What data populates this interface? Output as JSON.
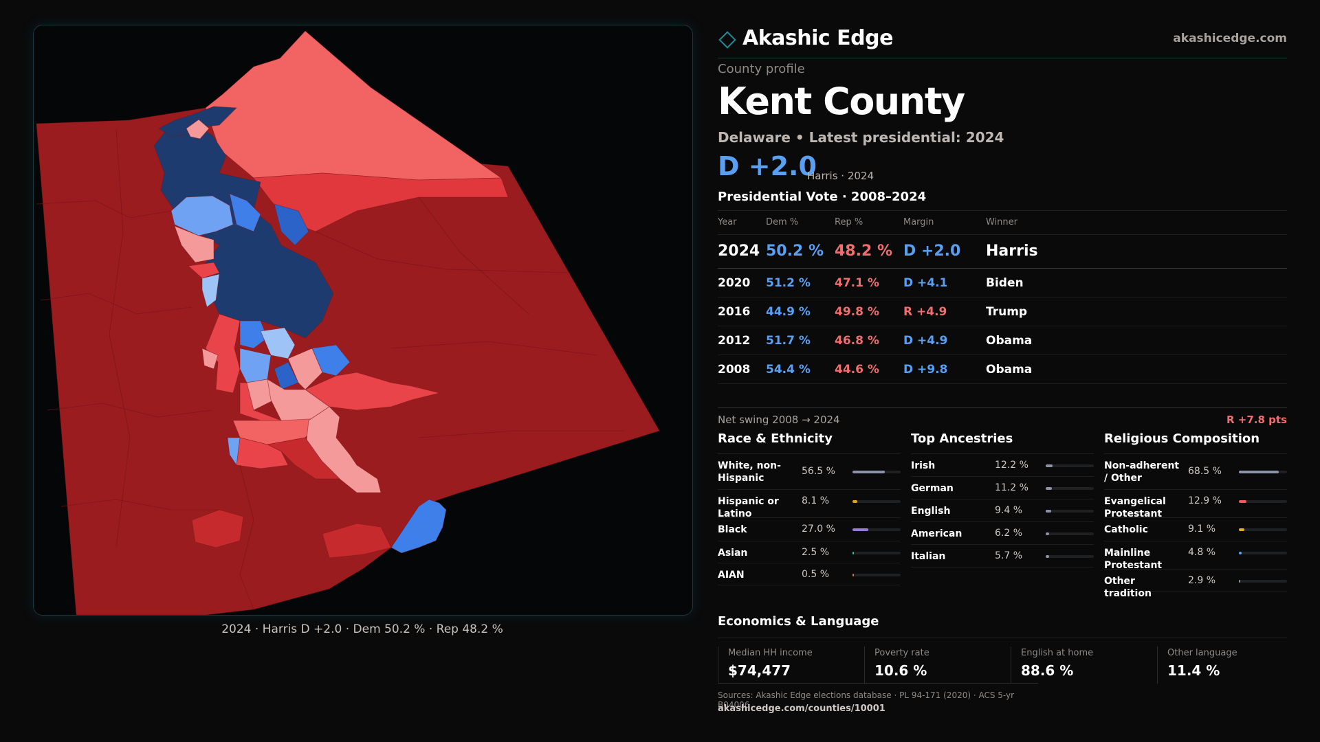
{
  "brand": {
    "name": "Akashic Edge",
    "url": "akashicedge.com",
    "accent": "#1e8c93"
  },
  "header": {
    "eyebrow": "County profile",
    "title": "Kent County",
    "subtitle": "Delaware • Latest presidential: 2024",
    "margin": "D +2.0",
    "margin_note": "Harris · 2024"
  },
  "map": {
    "caption": "2024 · Harris D +2.0 · Dem 50.2 % · Rep 48.2 %",
    "palette": {
      "safe_rep": "#9b1c1f",
      "likely_rep": "#c62a2d",
      "lean_rep": "#e8444a",
      "tilt_rep": "#f26363",
      "light_rep": "#f59a9a",
      "safe_dem": "#1d3b6e",
      "likely_dem": "#2c63c9",
      "lean_dem": "#3e7fea",
      "tilt_dem": "#6fa2f2",
      "light_dem": "#9dc3f7"
    }
  },
  "vote_table": {
    "title": "Presidential Vote · 2008–2024",
    "columns": [
      "Year",
      "Dem %",
      "Rep %",
      "Margin",
      "Winner"
    ],
    "rows": [
      {
        "year": "2024",
        "dem": "50.2 %",
        "rep": "48.2 %",
        "margin": "D +2.0",
        "party": "dem",
        "winner": "Harris"
      },
      {
        "year": "2020",
        "dem": "51.2 %",
        "rep": "47.1 %",
        "margin": "D +4.1",
        "party": "dem",
        "winner": "Biden"
      },
      {
        "year": "2016",
        "dem": "44.9 %",
        "rep": "49.8 %",
        "margin": "R +4.9",
        "party": "rep",
        "winner": "Trump"
      },
      {
        "year": "2012",
        "dem": "51.7 %",
        "rep": "46.8 %",
        "margin": "D +4.9",
        "party": "dem",
        "winner": "Obama"
      },
      {
        "year": "2008",
        "dem": "54.4 %",
        "rep": "44.6 %",
        "margin": "D +9.8",
        "party": "dem",
        "winner": "Obama"
      }
    ],
    "swing_label": "Net swing 2008 → 2024",
    "swing_value": "R +7.8 pts"
  },
  "race": {
    "title": "Race & Ethnicity",
    "items": [
      {
        "label": "White, non-Hispanic",
        "pct": "56.5 %",
        "value": 56.5,
        "color": "#8a93a8"
      },
      {
        "label": "Hispanic or Latino",
        "pct": "8.1 %",
        "value": 8.1,
        "color": "#e0a020"
      },
      {
        "label": "Black",
        "pct": "27.0 %",
        "value": 27.0,
        "color": "#9a7ae0"
      },
      {
        "label": "Asian",
        "pct": "2.5 %",
        "value": 2.5,
        "color": "#2ec2a8"
      },
      {
        "label": "AIAN",
        "pct": "0.5 %",
        "value": 0.5,
        "color": "#d07a4a"
      }
    ]
  },
  "ancestry": {
    "title": "Top Ancestries",
    "items": [
      {
        "label": "Irish",
        "pct": "12.2 %",
        "value": 12.2,
        "color": "#8a93a8"
      },
      {
        "label": "German",
        "pct": "11.2 %",
        "value": 11.2,
        "color": "#8a93a8"
      },
      {
        "label": "English",
        "pct": "9.4 %",
        "value": 9.4,
        "color": "#8a93a8"
      },
      {
        "label": "American",
        "pct": "6.2 %",
        "value": 6.2,
        "color": "#8a93a8"
      },
      {
        "label": "Italian",
        "pct": "5.7 %",
        "value": 5.7,
        "color": "#8a93a8"
      }
    ]
  },
  "religion": {
    "title": "Religious Composition",
    "items": [
      {
        "label": "Non-adherent / Other",
        "pct": "68.5 %",
        "value": 68.5,
        "color": "#8a93a8"
      },
      {
        "label": "Evangelical Protestant",
        "pct": "12.9 %",
        "value": 12.9,
        "color": "#ef5a5a"
      },
      {
        "label": "Catholic",
        "pct": "9.1 %",
        "value": 9.1,
        "color": "#e0b020"
      },
      {
        "label": "Mainline Protestant",
        "pct": "4.8 %",
        "value": 4.8,
        "color": "#5aa0f2"
      },
      {
        "label": "Other tradition",
        "pct": "2.9 %",
        "value": 2.9,
        "color": "#8a93a8"
      }
    ]
  },
  "economics": {
    "title": "Economics & Language",
    "items": [
      {
        "label": "Median HH income",
        "value": "$74,477"
      },
      {
        "label": "Poverty rate",
        "value": "10.6 %"
      },
      {
        "label": "English at home",
        "value": "88.6 %"
      },
      {
        "label": "Other language",
        "value": "11.4 %"
      }
    ]
  },
  "footer": {
    "sources": "Sources: Akashic Edge elections database · PL 94-171 (2020) · ACS 5-yr B04006",
    "url": "akashicedge.com/counties/10001"
  }
}
